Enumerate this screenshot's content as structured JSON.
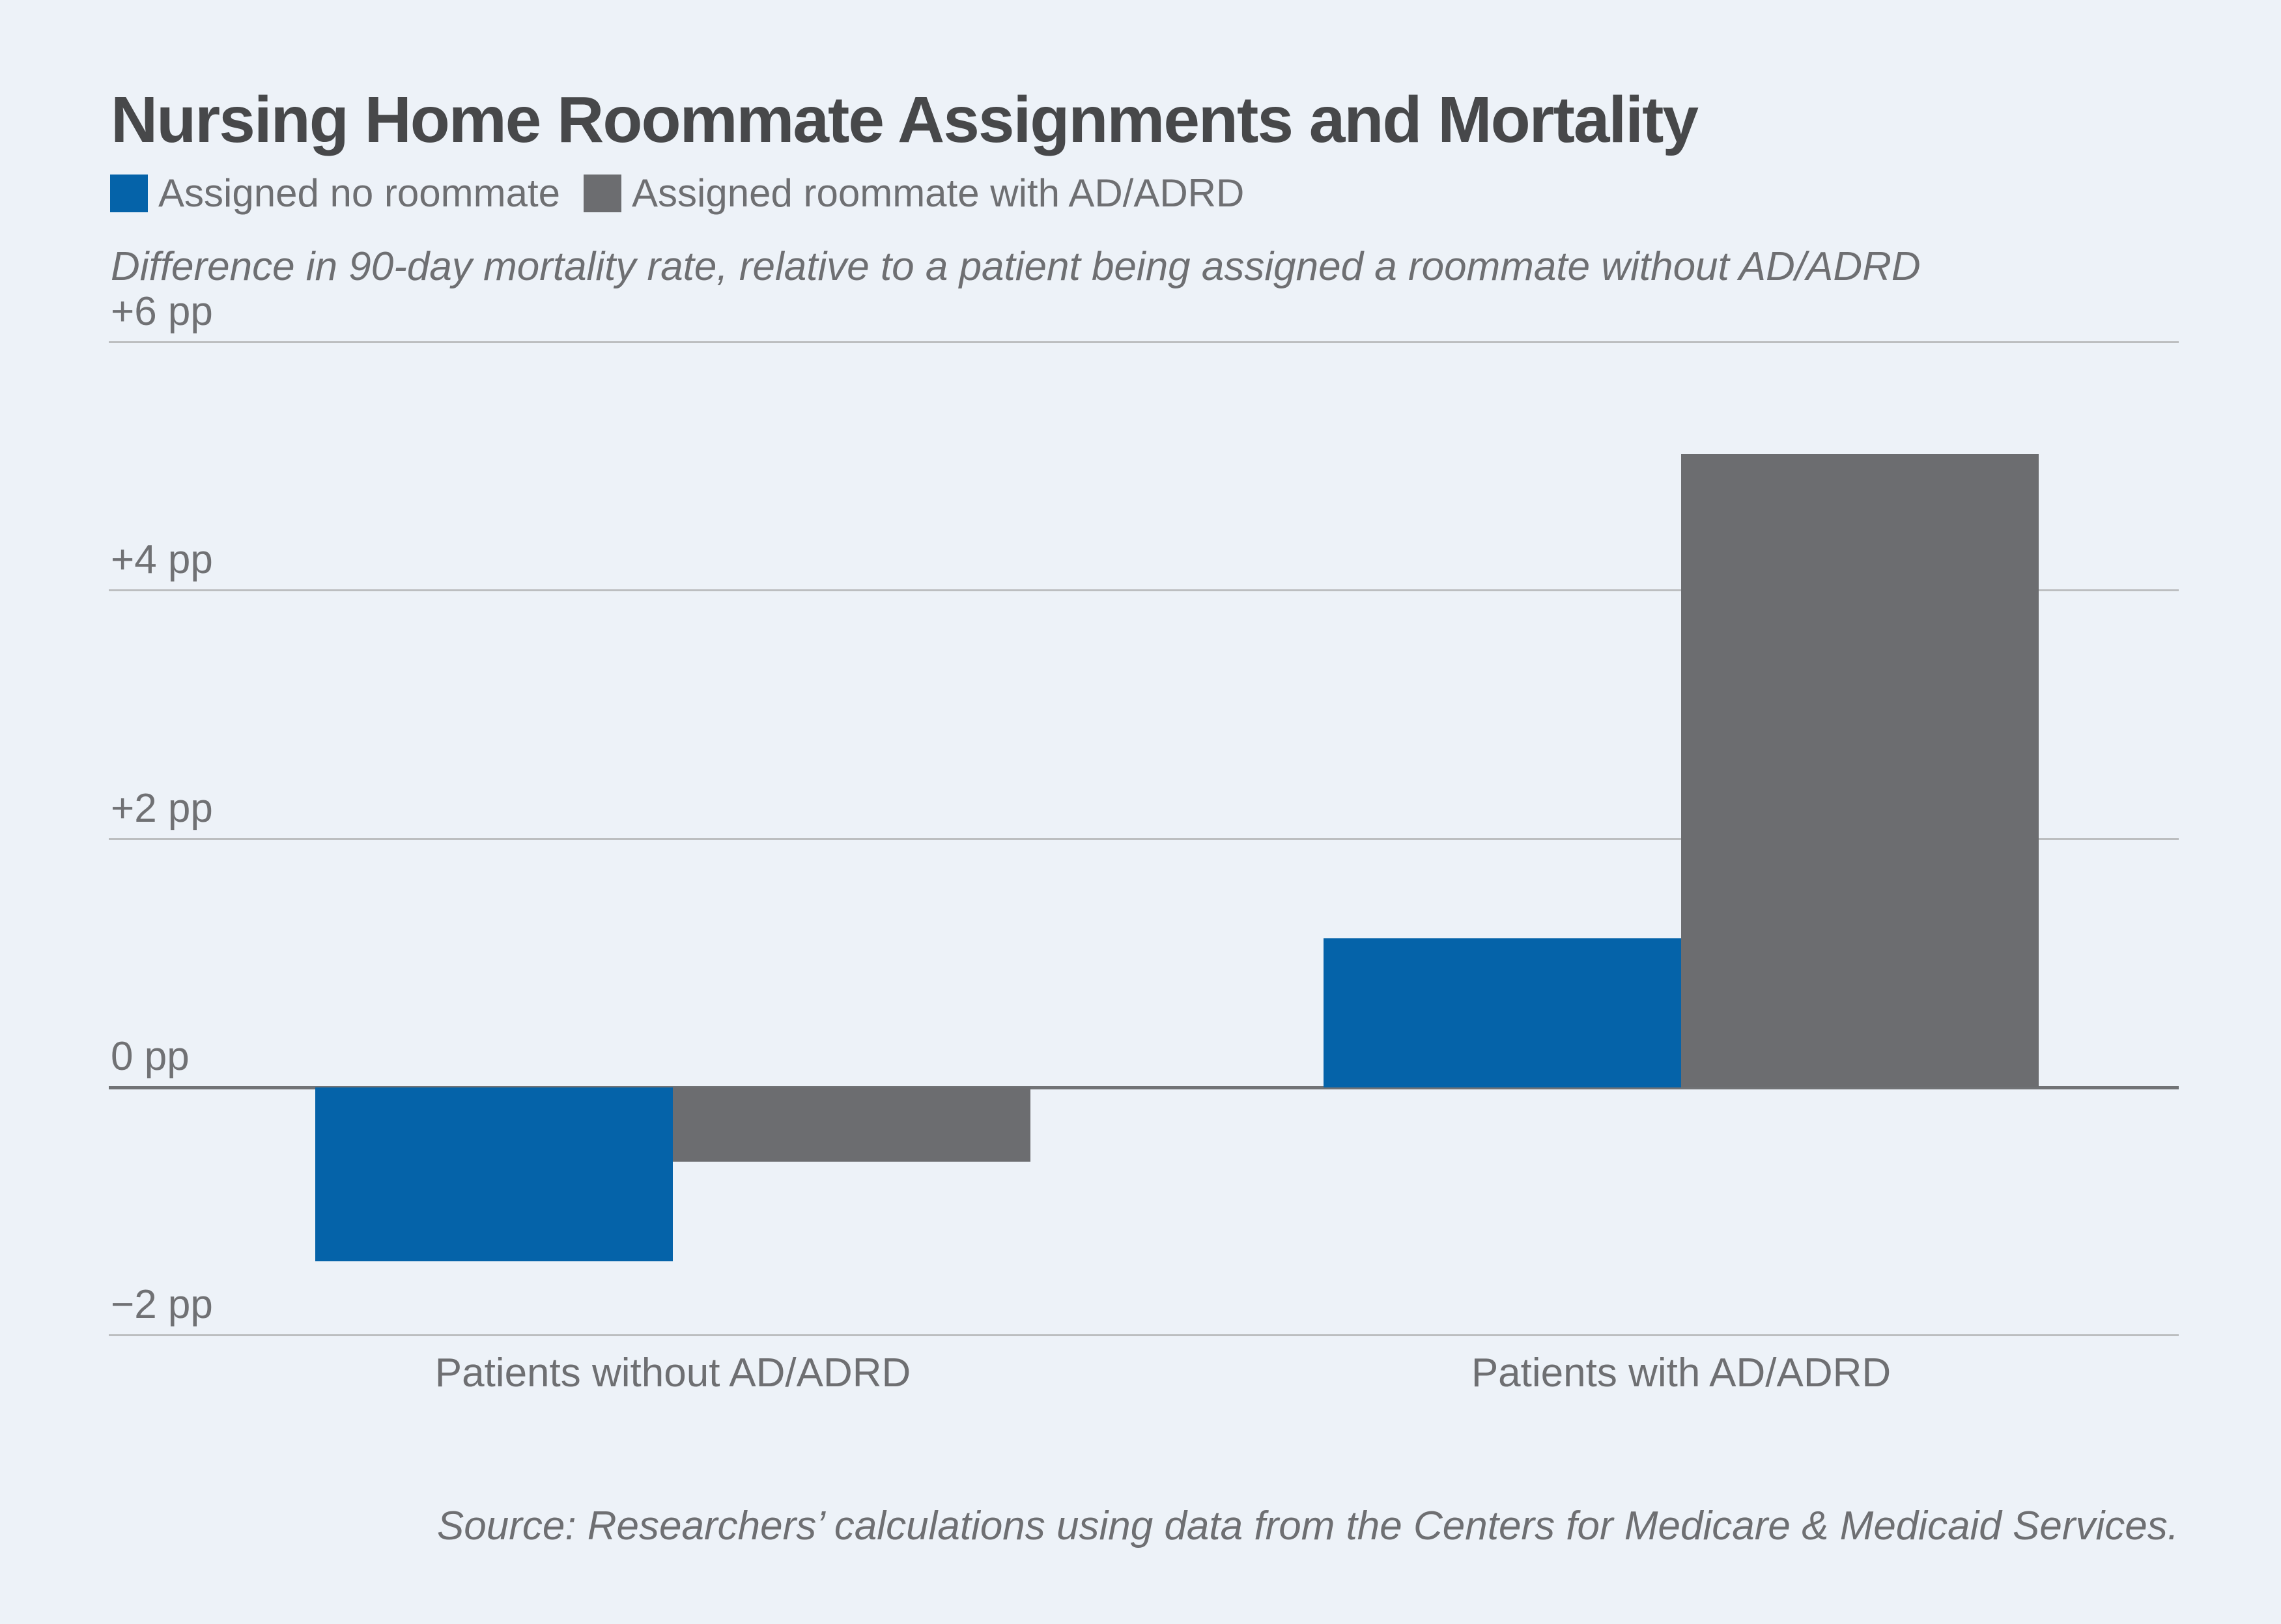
{
  "figure": {
    "title": "Nursing Home Roommate Assignments and Mortality",
    "subtitle": "Difference in 90-day mortality rate, relative to a patient being assigned a roommate without AD/ADRD",
    "source": "Source: Researchers’ calculations using data from the Centers for Medicare & Medicaid Services."
  },
  "legend": {
    "items": [
      {
        "label": "Assigned no roommate",
        "color": "#0563A9"
      },
      {
        "label": "Assigned roommate with AD/ADRD",
        "color": "#6C6D70"
      }
    ]
  },
  "colors": {
    "background": "#EDF2F8",
    "title_text": "#47484A",
    "body_text": "#6E6F72",
    "gridline": "#BCBEC0",
    "zero_line": "#717376",
    "bar_blue": "#0563A9",
    "bar_gray": "#6C6D70"
  },
  "chart_data": {
    "type": "bar",
    "title": "Nursing Home Roommate Assignments and Mortality",
    "subtitle": "Difference in 90-day mortality rate, relative to a patient being assigned a roommate without AD/ADRD",
    "categories": [
      "Patients without AD/ADRD",
      "Patients with AD/ADRD"
    ],
    "series": [
      {
        "name": "Assigned no roommate",
        "color": "#0563A9",
        "values": [
          -1.4,
          1.2
        ]
      },
      {
        "name": "Assigned roommate with AD/ADRD",
        "color": "#6C6D70",
        "values": [
          -0.6,
          5.1
        ]
      }
    ],
    "xlabel": "",
    "ylabel": "Difference in 90-day mortality rate (percentage points)",
    "yticks": [
      {
        "value": 6,
        "label": "+6 pp"
      },
      {
        "value": 4,
        "label": "+4 pp"
      },
      {
        "value": 2,
        "label": "+2 pp"
      },
      {
        "value": 0,
        "label": "0 pp"
      },
      {
        "value": -2,
        "label": "−2 pp"
      }
    ],
    "ylim": [
      -2.6,
      6.6
    ],
    "grid": true,
    "legend_position": "top-left",
    "source": "Source: Researchers’ calculations using data from the Centers for Medicare & Medicaid Services."
  }
}
